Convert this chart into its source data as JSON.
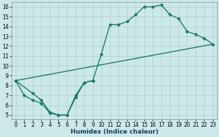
{
  "background_color": "#cce8e8",
  "grid_color": "#aacccc",
  "line_color": "#1a7868",
  "xlabel": "Humidex (Indice chaleur)",
  "xlim": [
    -0.5,
    23.5
  ],
  "ylim": [
    4.6,
    16.5
  ],
  "xticks": [
    0,
    1,
    2,
    3,
    4,
    5,
    6,
    7,
    8,
    9,
    10,
    11,
    12,
    13,
    14,
    15,
    16,
    17,
    18,
    19,
    20,
    21,
    22,
    23
  ],
  "yticks": [
    5,
    6,
    7,
    8,
    9,
    10,
    11,
    12,
    13,
    14,
    15,
    16
  ],
  "curve1_x": [
    0,
    1,
    2,
    3,
    4,
    5,
    6,
    7,
    8,
    9,
    10,
    11,
    12,
    13,
    14,
    15,
    16,
    17,
    18,
    19,
    20,
    21,
    22,
    23
  ],
  "curve1_y": [
    8.5,
    7.0,
    6.5,
    6.2,
    5.2,
    5.0,
    5.0,
    6.8,
    8.3,
    8.5,
    11.2,
    14.2,
    14.2,
    14.5,
    15.2,
    16.0,
    16.0,
    16.2,
    15.2,
    14.8,
    13.5,
    13.2,
    12.8,
    12.2
  ],
  "curve2_x": [
    0,
    2,
    3,
    4,
    5,
    6,
    7,
    8,
    9
  ],
  "curve2_y": [
    8.5,
    7.2,
    6.5,
    5.3,
    5.0,
    5.0,
    7.0,
    8.3,
    8.5
  ],
  "curve3_x": [
    0,
    23
  ],
  "curve3_y": [
    8.5,
    12.2
  ],
  "marker_size": 2.5,
  "line_width": 1.0,
  "tick_fontsize": 5.5,
  "xlabel_fontsize": 6.5
}
